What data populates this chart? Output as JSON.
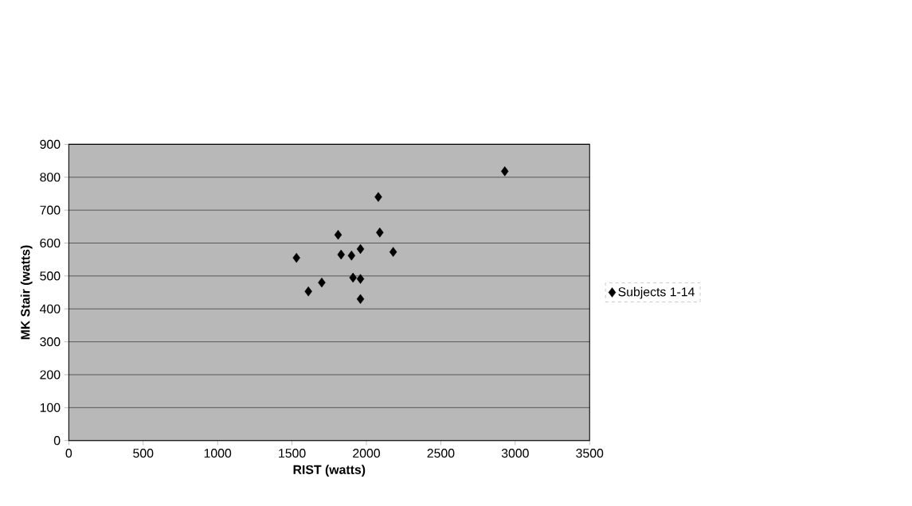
{
  "chart_data": {
    "type": "scatter",
    "xlabel": "RIST (watts)",
    "ylabel": "MK Stair (watts)",
    "series": [
      {
        "name": "Subjects 1-14",
        "color": "#000000",
        "x": [
          1530,
          1610,
          1700,
          1810,
          1830,
          1900,
          1910,
          1960,
          1960,
          1960,
          2080,
          2090,
          2180,
          2930
        ],
        "values": [
          555,
          453,
          480,
          625,
          565,
          562,
          495,
          582,
          491,
          430,
          740,
          632,
          573,
          818
        ]
      }
    ],
    "xlim": [
      0,
      3500
    ],
    "xticks": [
      0,
      500,
      1000,
      1500,
      2000,
      2500,
      3000,
      3500
    ],
    "ylim": [
      0,
      900
    ],
    "yticks": [
      0,
      100,
      200,
      300,
      400,
      500,
      600,
      700,
      800,
      900
    ],
    "grid": "y",
    "legend": "right",
    "marker": "diamond"
  }
}
